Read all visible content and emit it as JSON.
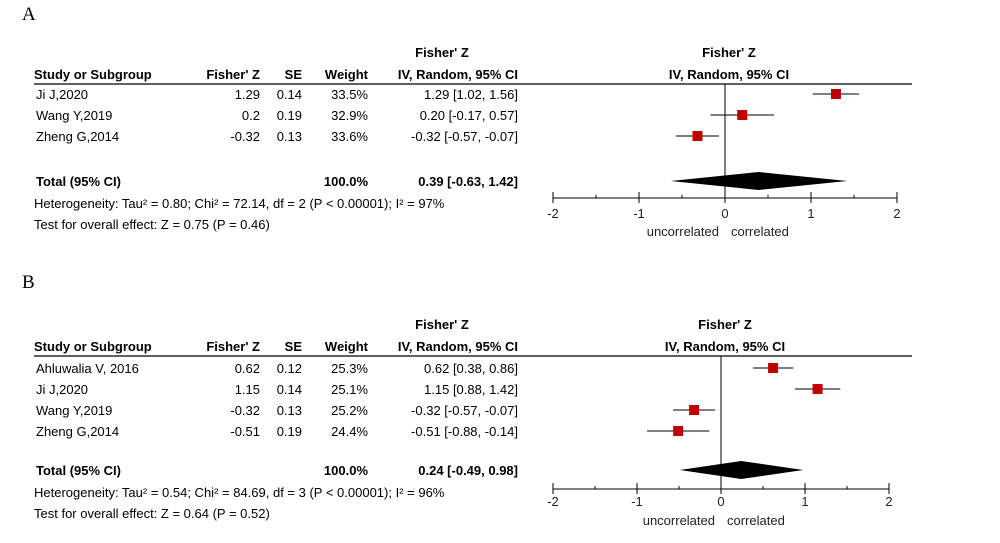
{
  "chart_data": [
    {
      "type": "forest",
      "panel": "A",
      "headers": {
        "group_z": "Fisher' Z",
        "group_plot": "Fisher' Z",
        "study": "Study or Subgroup",
        "z": "Fisher' Z",
        "se": "SE",
        "weight": "Weight",
        "ci": "IV, Random, 95% CI",
        "plot_ci": "IV, Random, 95% CI"
      },
      "studies": [
        {
          "name": "Ji J,2020",
          "z": "1.29",
          "se": "0.14",
          "weight": "33.5%",
          "ci": "1.29 [1.02, 1.56]",
          "est": 1.29,
          "lo": 1.02,
          "hi": 1.56
        },
        {
          "name": "Wang Y,2019",
          "z": "0.2",
          "se": "0.19",
          "weight": "32.9%",
          "ci": "0.20 [-0.17, 0.57]",
          "est": 0.2,
          "lo": -0.17,
          "hi": 0.57
        },
        {
          "name": "Zheng G,2014",
          "z": "-0.32",
          "se": "0.13",
          "weight": "33.6%",
          "ci": "-0.32 [-0.57, -0.07]",
          "est": -0.32,
          "lo": -0.57,
          "hi": -0.07
        }
      ],
      "total": {
        "label": "Total (95% CI)",
        "weight": "100.0%",
        "ci": "0.39 [-0.63, 1.42]",
        "est": 0.39,
        "lo": -0.63,
        "hi": 1.42
      },
      "heterogeneity": "Heterogeneity: Tau² = 0.80; Chi² = 72.14, df = 2 (P < 0.00001); I² = 97%",
      "overall_effect": "Test for overall effect: Z = 0.75 (P = 0.46)",
      "axis": {
        "min": -2,
        "max": 2,
        "ticks": [
          "-2",
          "-1",
          "0",
          "1",
          "2"
        ],
        "left_label": "uncorrelated",
        "right_label": "correlated"
      },
      "colors": {
        "marker": "#c00000",
        "diamond": "#000000"
      }
    },
    {
      "type": "forest",
      "panel": "B",
      "headers": {
        "group_z": "Fisher' Z",
        "group_plot": "Fisher' Z",
        "study": "Study or Subgroup",
        "z": "Fisher' Z",
        "se": "SE",
        "weight": "Weight",
        "ci": "IV, Random, 95% CI",
        "plot_ci": "IV, Random, 95% CI"
      },
      "studies": [
        {
          "name": "Ahluwalia V, 2016",
          "z": "0.62",
          "se": "0.12",
          "weight": "25.3%",
          "ci": "0.62 [0.38, 0.86]",
          "est": 0.62,
          "lo": 0.38,
          "hi": 0.86
        },
        {
          "name": "Ji J,2020",
          "z": "1.15",
          "se": "0.14",
          "weight": "25.1%",
          "ci": "1.15 [0.88, 1.42]",
          "est": 1.15,
          "lo": 0.88,
          "hi": 1.42
        },
        {
          "name": "Wang Y,2019",
          "z": "-0.32",
          "se": "0.13",
          "weight": "25.2%",
          "ci": "-0.32 [-0.57, -0.07]",
          "est": -0.32,
          "lo": -0.57,
          "hi": -0.07
        },
        {
          "name": "Zheng G,2014",
          "z": "-0.51",
          "se": "0.19",
          "weight": "24.4%",
          "ci": "-0.51 [-0.88, -0.14]",
          "est": -0.51,
          "lo": -0.88,
          "hi": -0.14
        }
      ],
      "total": {
        "label": "Total (95% CI)",
        "weight": "100.0%",
        "ci": "0.24 [-0.49, 0.98]",
        "est": 0.24,
        "lo": -0.49,
        "hi": 0.98
      },
      "heterogeneity": "Heterogeneity: Tau² = 0.54; Chi² = 84.69, df = 3 (P < 0.00001); I² = 96%",
      "overall_effect": "Test for overall effect: Z = 0.64 (P = 0.52)",
      "axis": {
        "min": -2,
        "max": 2,
        "ticks": [
          "-2",
          "-1",
          "0",
          "1",
          "2"
        ],
        "left_label": "uncorrelated",
        "right_label": "correlated"
      },
      "colors": {
        "marker": "#c00000",
        "diamond": "#000000"
      }
    }
  ]
}
